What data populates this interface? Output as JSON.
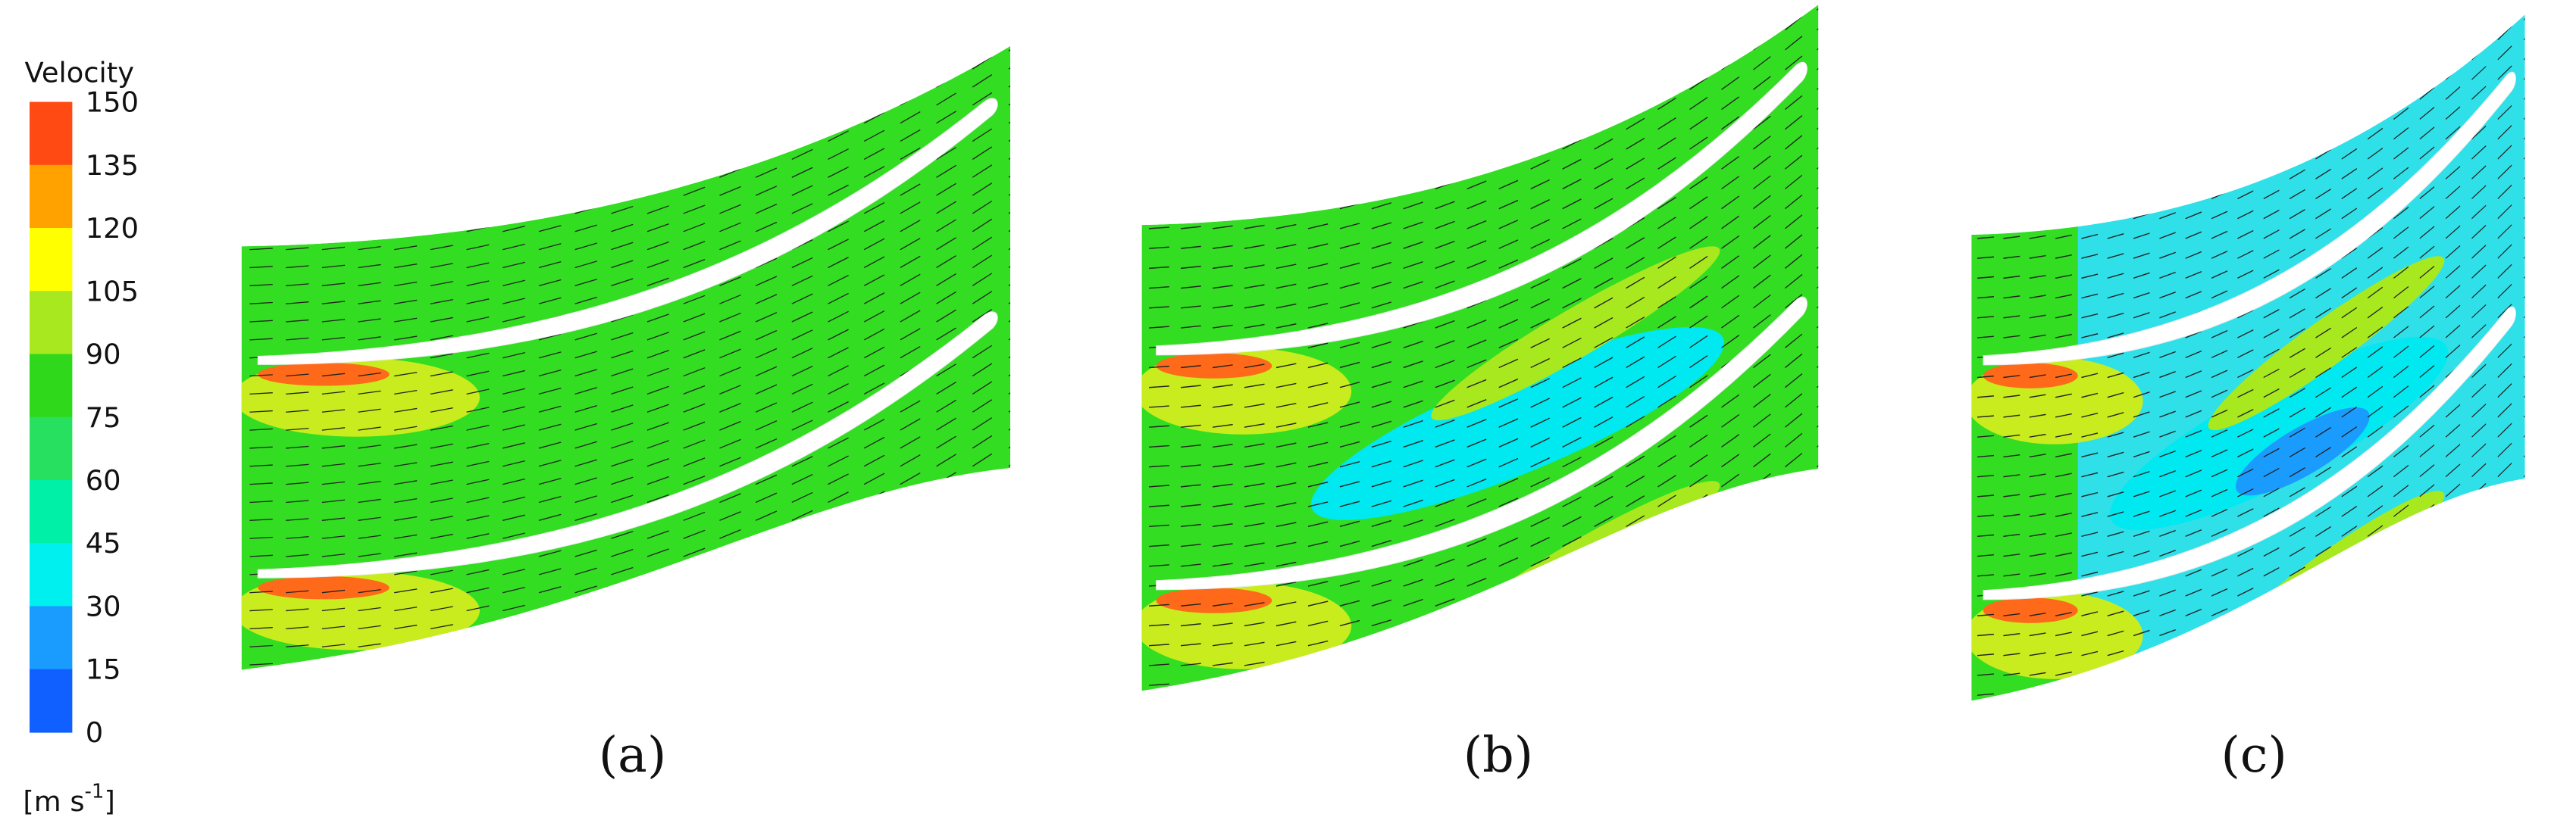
{
  "colorbar": {
    "title": "Velocity",
    "ticks": [
      "150",
      "135",
      "120",
      "105",
      "90",
      "75",
      "60",
      "45",
      "30",
      "15",
      "0"
    ],
    "colors": [
      "#ff4a14",
      "#ffa200",
      "#ffff00",
      "#a8e81e",
      "#2fd81a",
      "#28e060",
      "#00f0a8",
      "#00f0f0",
      "#1a9cff",
      "#1060ff"
    ],
    "unit": {
      "text": "[m s",
      "superscript": "-1",
      "closing": "]"
    }
  },
  "panels": [
    {
      "label": "(a)"
    },
    {
      "label": "(b)"
    },
    {
      "label": "(c)"
    }
  ]
}
